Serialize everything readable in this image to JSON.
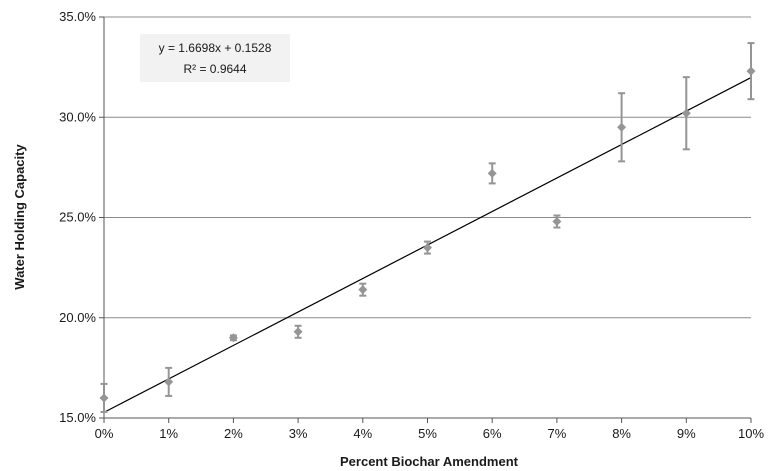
{
  "chart_data": {
    "type": "scatter",
    "title": "",
    "xlabel": "Percent Biochar Amendment",
    "ylabel": "Water Holding Capacity",
    "xlim": [
      0,
      0.1
    ],
    "ylim": [
      0.15,
      0.35
    ],
    "grid": "horizontal",
    "x_ticks": [
      "0%",
      "1%",
      "2%",
      "3%",
      "4%",
      "5%",
      "6%",
      "7%",
      "8%",
      "9%",
      "10%"
    ],
    "y_ticks": [
      "15.0%",
      "20.0%",
      "25.0%",
      "30.0%",
      "35.0%"
    ],
    "x": [
      0,
      0.01,
      0.02,
      0.03,
      0.04,
      0.05,
      0.06,
      0.07,
      0.08,
      0.09,
      0.1
    ],
    "y": [
      0.16,
      0.168,
      0.19,
      0.193,
      0.214,
      0.235,
      0.272,
      0.248,
      0.295,
      0.302,
      0.323
    ],
    "error": [
      0.007,
      0.007,
      0.0012,
      0.003,
      0.003,
      0.003,
      0.005,
      0.003,
      0.017,
      0.018,
      0.014
    ],
    "colors": {
      "points": "#959595",
      "trendline": "#000000",
      "grid": "#8c8c8c"
    },
    "trendline": {
      "slope": 1.6698,
      "intercept": 0.1528,
      "equation": "y = 1.6698x + 0.1528",
      "r_squared": "R² = 0.9644"
    }
  }
}
